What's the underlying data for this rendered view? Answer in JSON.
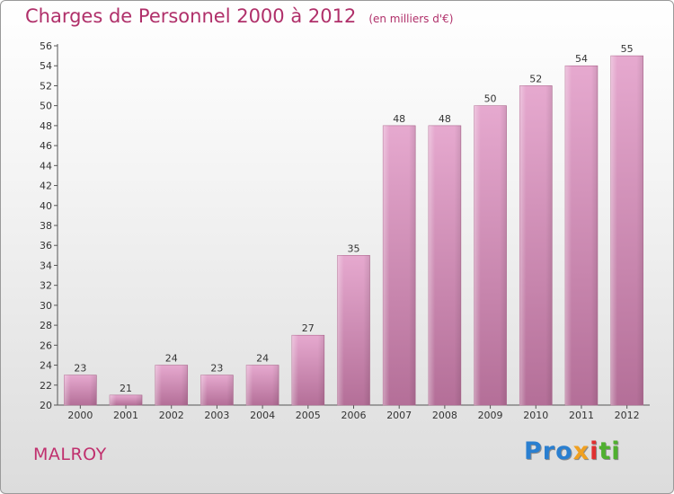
{
  "chart_data": {
    "type": "bar",
    "title": "Charges de Personnel 2000 à 2012",
    "subtitle": "(en milliers d'€)",
    "categories": [
      "2000",
      "2001",
      "2002",
      "2003",
      "2004",
      "2005",
      "2006",
      "2007",
      "2008",
      "2009",
      "2010",
      "2011",
      "2012"
    ],
    "values": [
      23,
      21,
      24,
      23,
      24,
      27,
      35,
      48,
      48,
      50,
      52,
      54,
      55
    ],
    "ylim": [
      20,
      56
    ],
    "yticks": [
      20,
      22,
      24,
      26,
      28,
      30,
      32,
      34,
      36,
      38,
      40,
      42,
      44,
      46,
      48,
      50,
      52,
      54,
      56
    ],
    "xlabel": "",
    "ylabel": "",
    "grid": false,
    "bar_color": "#c77fa6"
  },
  "footer": {
    "city": "MALROY",
    "logo": {
      "parts": [
        {
          "text": "Pro",
          "color": "#2a7fd0"
        },
        {
          "text": "x",
          "color": "#f0a020"
        },
        {
          "text": "i",
          "color": "#e03030"
        },
        {
          "text": "ti",
          "color": "#50b030"
        }
      ]
    }
  }
}
